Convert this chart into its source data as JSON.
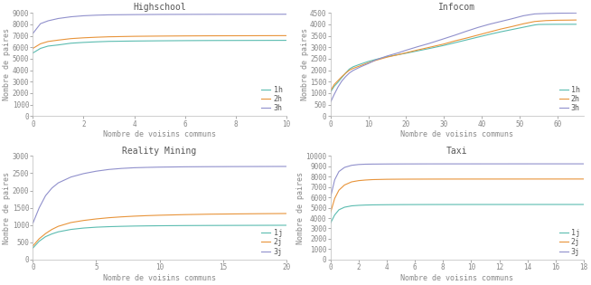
{
  "subplots": [
    {
      "title": "Highschool",
      "xlabel": "Nombre de voisins communs",
      "ylabel": "Nombre de paires",
      "xlim": [
        0,
        10
      ],
      "ylim": [
        0,
        9000
      ],
      "yticks": [
        0,
        1000,
        2000,
        3000,
        4000,
        5000,
        6000,
        7000,
        8000,
        9000
      ],
      "xticks": [
        0,
        2,
        4,
        6,
        8,
        10
      ],
      "legend_labels": [
        "1h",
        "2h",
        "3h"
      ],
      "series": [
        {
          "x": [
            0,
            0.3,
            0.6,
            1,
            1.5,
            2,
            2.5,
            3,
            4,
            5,
            6,
            7,
            8,
            9,
            10
          ],
          "y": [
            5500,
            5900,
            6100,
            6200,
            6350,
            6420,
            6470,
            6510,
            6540,
            6560,
            6575,
            6585,
            6590,
            6595,
            6600
          ],
          "color": "#5bbcb0",
          "lw": 0.8
        },
        {
          "x": [
            0,
            0.3,
            0.6,
            1,
            1.5,
            2,
            2.5,
            3,
            4,
            5,
            6,
            7,
            8,
            9,
            10
          ],
          "y": [
            5900,
            6300,
            6500,
            6620,
            6750,
            6820,
            6870,
            6910,
            6950,
            6970,
            6985,
            6995,
            7000,
            7005,
            7010
          ],
          "color": "#e8943a",
          "lw": 0.8
        },
        {
          "x": [
            0,
            0.3,
            0.6,
            1,
            1.5,
            2,
            2.5,
            3,
            4,
            5,
            6,
            7,
            8,
            9,
            10
          ],
          "y": [
            7200,
            8050,
            8300,
            8500,
            8650,
            8740,
            8790,
            8820,
            8840,
            8855,
            8860,
            8865,
            8868,
            8870,
            8872
          ],
          "color": "#9090cc",
          "lw": 0.8
        }
      ],
      "legend_pos": "lower right"
    },
    {
      "title": "Infocom",
      "xlabel": "Nombre de voisins communs",
      "ylabel": "Nombre de paires",
      "xlim": [
        0,
        67
      ],
      "ylim": [
        0,
        4500
      ],
      "yticks": [
        0,
        500,
        1000,
        1500,
        2000,
        2500,
        3000,
        3500,
        4000,
        4500
      ],
      "xticks": [
        0,
        10,
        20,
        30,
        40,
        50,
        60
      ],
      "legend_labels": [
        "1h",
        "2h",
        "3h"
      ],
      "series": [
        {
          "x": [
            0,
            1,
            2,
            3,
            4,
            5,
            6,
            8,
            10,
            12,
            15,
            18,
            20,
            23,
            26,
            30,
            33,
            36,
            39,
            42,
            45,
            48,
            51,
            54,
            55,
            57,
            60,
            63,
            65
          ],
          "y": [
            1050,
            1300,
            1480,
            1680,
            1880,
            2050,
            2150,
            2270,
            2380,
            2470,
            2590,
            2680,
            2740,
            2840,
            2940,
            3080,
            3200,
            3320,
            3440,
            3560,
            3670,
            3770,
            3870,
            3970,
            3990,
            3995,
            3998,
            3999,
            3999
          ],
          "color": "#5bbcb0",
          "lw": 0.8
        },
        {
          "x": [
            0,
            1,
            2,
            3,
            4,
            5,
            6,
            8,
            10,
            12,
            15,
            18,
            20,
            23,
            26,
            30,
            33,
            36,
            39,
            42,
            45,
            48,
            51,
            54,
            57,
            60,
            63,
            65
          ],
          "y": [
            1100,
            1380,
            1550,
            1720,
            1870,
            2000,
            2080,
            2200,
            2320,
            2430,
            2570,
            2680,
            2760,
            2880,
            2990,
            3140,
            3280,
            3400,
            3530,
            3660,
            3790,
            3900,
            4020,
            4120,
            4160,
            4175,
            4180,
            4185
          ],
          "color": "#e8943a",
          "lw": 0.8
        },
        {
          "x": [
            0,
            1,
            2,
            3,
            4,
            5,
            6,
            8,
            10,
            12,
            15,
            18,
            20,
            23,
            26,
            30,
            33,
            36,
            39,
            42,
            45,
            48,
            51,
            54,
            57,
            60,
            63,
            65
          ],
          "y": [
            600,
            950,
            1270,
            1530,
            1720,
            1880,
            1990,
            2150,
            2290,
            2450,
            2620,
            2760,
            2870,
            3020,
            3160,
            3370,
            3530,
            3700,
            3860,
            4000,
            4120,
            4240,
            4370,
            4450,
            4470,
            4480,
            4485,
            4490
          ],
          "color": "#9090cc",
          "lw": 0.8
        }
      ],
      "legend_pos": "lower right"
    },
    {
      "title": "Reality Mining",
      "xlabel": "Nombre de voisins communs",
      "ylabel": "Nombre de paires",
      "xlim": [
        0,
        20
      ],
      "ylim": [
        0,
        3000
      ],
      "yticks": [
        0,
        500,
        1000,
        1500,
        2000,
        2500,
        3000
      ],
      "xticks": [
        0,
        5,
        10,
        15,
        20
      ],
      "legend_labels": [
        "1j",
        "2j",
        "3j"
      ],
      "series": [
        {
          "x": [
            0,
            0.5,
            1,
            1.5,
            2,
            3,
            4,
            5,
            6,
            7,
            8,
            9,
            10,
            12,
            14,
            16,
            18,
            20
          ],
          "y": [
            330,
            530,
            660,
            740,
            800,
            870,
            910,
            935,
            950,
            960,
            968,
            973,
            977,
            982,
            985,
            987,
            989,
            991
          ],
          "color": "#5bbcb0",
          "lw": 0.8
        },
        {
          "x": [
            0,
            0.5,
            1,
            1.5,
            2,
            3,
            4,
            5,
            6,
            7,
            8,
            9,
            10,
            12,
            14,
            16,
            18,
            20
          ],
          "y": [
            390,
            600,
            750,
            870,
            960,
            1070,
            1130,
            1175,
            1210,
            1235,
            1255,
            1270,
            1282,
            1300,
            1313,
            1320,
            1327,
            1332
          ],
          "color": "#e8943a",
          "lw": 0.8
        },
        {
          "x": [
            0,
            0.5,
            1,
            1.5,
            2,
            3,
            4,
            5,
            6,
            7,
            8,
            9,
            10,
            12,
            14,
            16,
            18,
            20
          ],
          "y": [
            1050,
            1500,
            1850,
            2070,
            2220,
            2390,
            2490,
            2560,
            2610,
            2640,
            2660,
            2670,
            2678,
            2687,
            2691,
            2694,
            2696,
            2698
          ],
          "color": "#9090cc",
          "lw": 0.8
        }
      ],
      "legend_pos": "lower right"
    },
    {
      "title": "Taxi",
      "xlabel": "Nombre de voisins communs",
      "ylabel": "Nombre de paires",
      "xlim": [
        0,
        18
      ],
      "ylim": [
        0,
        10000
      ],
      "yticks": [
        0,
        1000,
        2000,
        3000,
        4000,
        5000,
        6000,
        7000,
        8000,
        9000,
        10000
      ],
      "xticks": [
        0,
        2,
        4,
        6,
        8,
        10,
        12,
        14,
        16,
        18
      ],
      "legend_labels": [
        "1j",
        "2j",
        "3j"
      ],
      "series": [
        {
          "x": [
            0,
            0.3,
            0.6,
            1,
            1.5,
            2,
            2.5,
            3,
            4,
            5,
            6,
            7,
            8,
            10,
            12,
            14,
            16,
            18
          ],
          "y": [
            3500,
            4300,
            4800,
            5050,
            5180,
            5230,
            5260,
            5275,
            5290,
            5300,
            5305,
            5308,
            5310,
            5312,
            5313,
            5314,
            5315,
            5315
          ],
          "color": "#5bbcb0",
          "lw": 0.8
        },
        {
          "x": [
            0,
            0.3,
            0.6,
            1,
            1.5,
            2,
            2.5,
            3,
            4,
            5,
            6,
            7,
            8,
            10,
            12,
            14,
            16,
            18
          ],
          "y": [
            4500,
            5900,
            6700,
            7200,
            7500,
            7620,
            7680,
            7720,
            7750,
            7760,
            7765,
            7768,
            7770,
            7772,
            7773,
            7774,
            7775,
            7776
          ],
          "color": "#e8943a",
          "lw": 0.8
        },
        {
          "x": [
            0,
            0.3,
            0.6,
            1,
            1.5,
            2,
            2.5,
            3,
            4,
            5,
            6,
            7,
            8,
            10,
            12,
            14,
            16,
            18
          ],
          "y": [
            6000,
            7700,
            8500,
            8900,
            9100,
            9180,
            9210,
            9220,
            9230,
            9235,
            9238,
            9240,
            9241,
            9242,
            9243,
            9244,
            9245,
            9245
          ],
          "color": "#9090cc",
          "lw": 0.8
        }
      ],
      "legend_pos": "lower right"
    }
  ],
  "fig_bg": "#ffffff",
  "title_fontsize": 7,
  "label_fontsize": 6,
  "tick_fontsize": 5.5,
  "legend_fontsize": 6,
  "line_width": 0.8
}
